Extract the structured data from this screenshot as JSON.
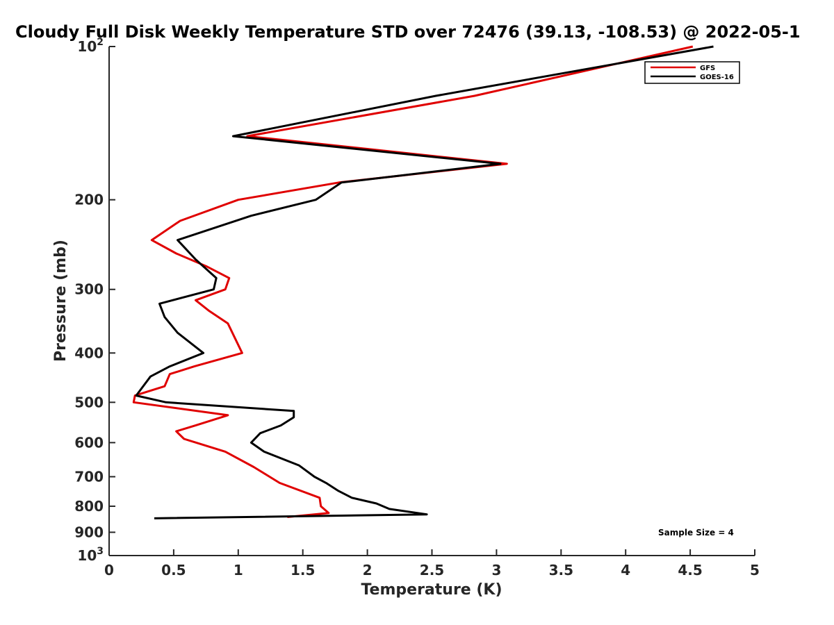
{
  "chart_data": {
    "type": "line",
    "title": "Cloudy Full Disk Weekly Temperature STD over 72476 (39.13, -108.53) @ 2022-05-1",
    "xlabel": "Temperature (K)",
    "ylabel": "Pressure (mb)",
    "xlim": [
      0,
      5
    ],
    "ylim": [
      1000,
      100
    ],
    "yscale": "log",
    "y_reversed": true,
    "x_ticks": [
      "0",
      "0.5",
      "1",
      "1.5",
      "2",
      "2.5",
      "3",
      "3.5",
      "4",
      "4.5",
      "5"
    ],
    "y_ticks": [
      {
        "value": 100,
        "label": "10",
        "sup": "2"
      },
      {
        "value": 200,
        "label": "200"
      },
      {
        "value": 300,
        "label": "300"
      },
      {
        "value": 400,
        "label": "400"
      },
      {
        "value": 500,
        "label": "500"
      },
      {
        "value": 600,
        "label": "600"
      },
      {
        "value": 700,
        "label": "700"
      },
      {
        "value": 800,
        "label": "800"
      },
      {
        "value": 900,
        "label": "900"
      },
      {
        "value": 1000,
        "label": "10",
        "sup": "3"
      }
    ],
    "grid": false,
    "legend_position": "top-right",
    "annotation": "Sample Size = 4",
    "series": [
      {
        "name": "GFS",
        "color": "#e00000",
        "points": [
          [
            4.52,
            100
          ],
          [
            2.83,
            125
          ],
          [
            1.07,
            150
          ],
          [
            3.08,
            170
          ],
          [
            1.78,
            185
          ],
          [
            1.0,
            200
          ],
          [
            0.55,
            220
          ],
          [
            0.33,
            240
          ],
          [
            0.52,
            255
          ],
          [
            0.75,
            270
          ],
          [
            0.93,
            285
          ],
          [
            0.9,
            300
          ],
          [
            0.67,
            315
          ],
          [
            0.77,
            330
          ],
          [
            0.92,
            350
          ],
          [
            1.03,
            400
          ],
          [
            0.66,
            425
          ],
          [
            0.47,
            440
          ],
          [
            0.43,
            465
          ],
          [
            0.2,
            485
          ],
          [
            0.19,
            500
          ],
          [
            0.92,
            530
          ],
          [
            0.67,
            555
          ],
          [
            0.52,
            570
          ],
          [
            0.58,
            590
          ],
          [
            0.9,
            625
          ],
          [
            1.12,
            670
          ],
          [
            1.32,
            720
          ],
          [
            1.63,
            770
          ],
          [
            1.64,
            800
          ],
          [
            1.7,
            825
          ],
          [
            1.38,
            840
          ]
        ]
      },
      {
        "name": "GOES-16",
        "color": "#000000",
        "points": [
          [
            4.68,
            100
          ],
          [
            2.53,
            125
          ],
          [
            0.96,
            150
          ],
          [
            3.03,
            170
          ],
          [
            1.8,
            185
          ],
          [
            1.6,
            200
          ],
          [
            1.1,
            215
          ],
          [
            0.53,
            240
          ],
          [
            0.67,
            262
          ],
          [
            0.83,
            285
          ],
          [
            0.81,
            300
          ],
          [
            0.39,
            320
          ],
          [
            0.43,
            340
          ],
          [
            0.53,
            365
          ],
          [
            0.73,
            400
          ],
          [
            0.47,
            425
          ],
          [
            0.32,
            445
          ],
          [
            0.21,
            485
          ],
          [
            0.44,
            500
          ],
          [
            1.43,
            520
          ],
          [
            1.43,
            535
          ],
          [
            1.33,
            555
          ],
          [
            1.17,
            575
          ],
          [
            1.1,
            600
          ],
          [
            1.2,
            625
          ],
          [
            1.47,
            665
          ],
          [
            1.59,
            700
          ],
          [
            1.68,
            720
          ],
          [
            1.77,
            745
          ],
          [
            1.88,
            770
          ],
          [
            2.07,
            790
          ],
          [
            2.17,
            810
          ],
          [
            2.46,
            830
          ],
          [
            0.35,
            845
          ]
        ]
      }
    ]
  }
}
